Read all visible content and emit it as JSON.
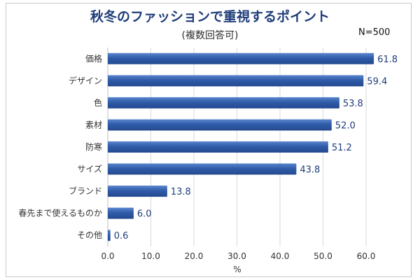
{
  "chart_data": {
    "type": "bar",
    "orientation": "horizontal",
    "title": "秋冬のファッションで重視するポイント",
    "subtitle": "(複数回答可)",
    "note": "N=500",
    "xlabel": "%",
    "categories": [
      "価格",
      "デザイン",
      "色",
      "素材",
      "防寒",
      "サイズ",
      "ブランド",
      "春先まで使えるものか",
      "その他"
    ],
    "values": [
      61.8,
      59.4,
      53.8,
      52.0,
      51.2,
      43.8,
      13.8,
      6.0,
      0.6
    ],
    "value_labels": [
      "61.8",
      "59.4",
      "53.8",
      "52.0",
      "51.2",
      "43.8",
      "13.8",
      "6.0",
      "0.6"
    ],
    "xlim": [
      0,
      60
    ],
    "xticks": [
      "0.0",
      "10.0",
      "20.0",
      "30.0",
      "40.0",
      "50.0",
      "60.0"
    ],
    "grid": "vertical",
    "colors": {
      "bar": "#2f5ba8",
      "bar_light": "#5a86cf",
      "grid": "#d9d9d9",
      "title": "#1f3d7a"
    }
  }
}
